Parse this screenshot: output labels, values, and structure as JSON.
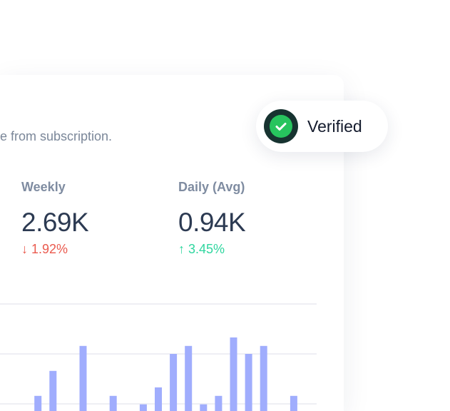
{
  "card": {
    "subtitle": "e from subscription.",
    "stats": [
      {
        "label": "Weekly",
        "value": "2.69K",
        "change": "1.92%",
        "direction": "down",
        "arrow": "↓"
      },
      {
        "label": "Daily (Avg)",
        "value": "0.94K",
        "change": "3.45%",
        "direction": "up",
        "arrow": "↑"
      }
    ]
  },
  "badge": {
    "label": "Verified",
    "icon": "check-circle-icon"
  },
  "colors": {
    "bar": "#a0adfd",
    "down": "#ea5a4e",
    "up": "#2fd69f",
    "badge_check": "#27c45e"
  },
  "chart_data": {
    "type": "bar",
    "grid": true,
    "values": [
      1.16,
      1.66,
      2.16,
      1.16,
      0.99,
      1.33,
      2.0,
      2.16,
      0.99,
      1.16,
      2.33,
      2.0,
      2.16,
      1.16
    ],
    "slots": [
      2,
      3,
      5,
      7,
      9,
      10,
      11,
      12,
      13,
      14,
      15,
      16,
      17,
      19
    ],
    "ylim": [
      0,
      3
    ]
  }
}
